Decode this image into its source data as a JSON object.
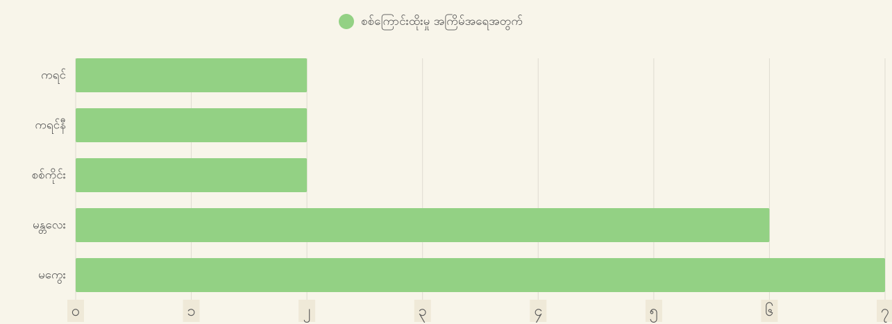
{
  "chart_data": {
    "type": "bar",
    "orientation": "horizontal",
    "legend": "စစ်ကြောင်းထိုးမှု အကြိမ်အရေအတွက်",
    "categories": [
      "ကရင်",
      "ကရင်နီ",
      "စစ်ကိုင်း",
      "မန္တလေး",
      "မကွေး"
    ],
    "values": [
      2,
      2,
      2,
      6,
      7
    ],
    "color": "#93d184",
    "xlim": [
      0,
      7
    ],
    "xticks": [
      {
        "value": 0,
        "label": "၀"
      },
      {
        "value": 1,
        "label": "၁"
      },
      {
        "value": 2,
        "label": "၂"
      },
      {
        "value": 3,
        "label": "၃"
      },
      {
        "value": 4,
        "label": "၄"
      },
      {
        "value": 5,
        "label": "၅"
      },
      {
        "value": 6,
        "label": "၆"
      },
      {
        "value": 7,
        "label": "၇"
      }
    ],
    "grid": true
  }
}
